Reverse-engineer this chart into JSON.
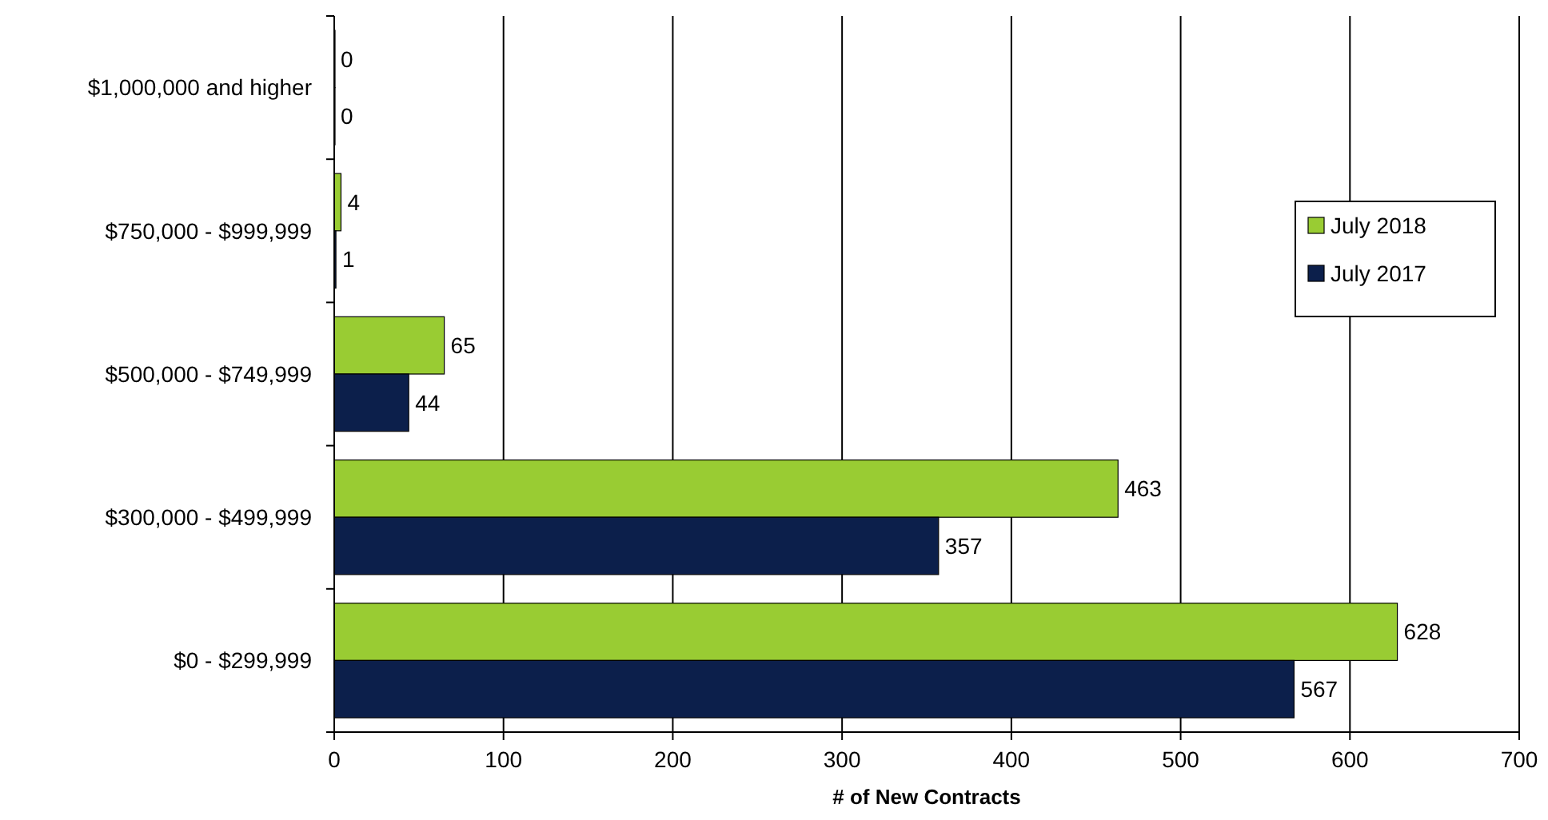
{
  "chart_data": {
    "type": "bar",
    "orientation": "horizontal",
    "xlabel": "# of New Contracts",
    "categories": [
      "$1,000,000 and higher",
      "$750,000 - $999,999",
      "$500,000 - $749,999",
      "$300,000 - $499,999",
      "$0 - $299,999"
    ],
    "series": [
      {
        "name": "July 2018",
        "color": "#99cc33",
        "values": [
          0,
          4,
          65,
          463,
          628
        ]
      },
      {
        "name": "July 2017",
        "color": "#0c1f4b",
        "values": [
          0,
          1,
          44,
          357,
          567
        ]
      }
    ],
    "xlim": [
      0,
      700
    ],
    "xticks": [
      0,
      100,
      200,
      300,
      400,
      500,
      600,
      700
    ],
    "grid": "x",
    "legend": "right",
    "data_labels": true
  }
}
